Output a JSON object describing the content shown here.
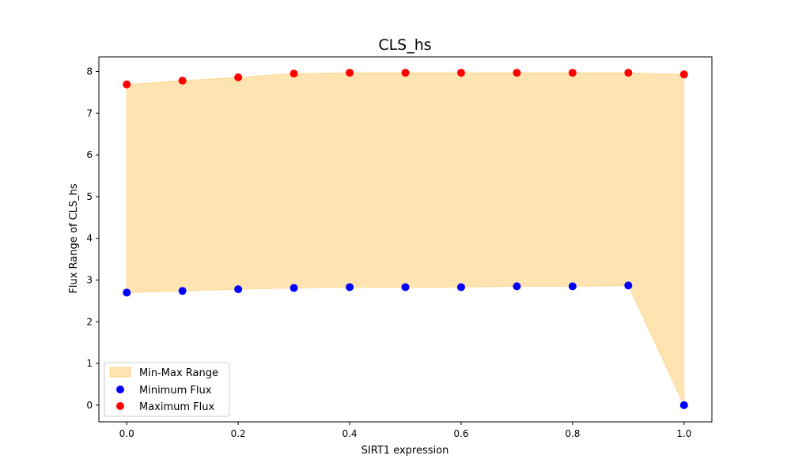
{
  "chart_data": {
    "type": "scatter",
    "title": "CLS_hs",
    "xlabel": "SIRT1 expression",
    "ylabel": "Flux Range of CLS_hs",
    "x": [
      0.0,
      0.1,
      0.2,
      0.3,
      0.4,
      0.5,
      0.6,
      0.7,
      0.8,
      0.9,
      1.0
    ],
    "xlim": [
      -0.05,
      1.05
    ],
    "ylim": [
      -0.4,
      8.35
    ],
    "xticks": [
      0.0,
      0.2,
      0.4,
      0.6,
      0.8,
      1.0
    ],
    "xtick_labels": [
      "0.0",
      "0.2",
      "0.4",
      "0.6",
      "0.8",
      "1.0"
    ],
    "yticks": [
      0,
      1,
      2,
      3,
      4,
      5,
      6,
      7,
      8
    ],
    "ytick_labels": [
      "0",
      "1",
      "2",
      "3",
      "4",
      "5",
      "6",
      "7",
      "8"
    ],
    "grid": false,
    "legend_position": "lower-left",
    "fill_between": {
      "name": "Min-Max Range",
      "color": "#ffa500",
      "opacity": 0.3
    },
    "series": [
      {
        "name": "Minimum Flux",
        "color": "#0000ff",
        "values": [
          2.7,
          2.74,
          2.78,
          2.81,
          2.83,
          2.83,
          2.83,
          2.85,
          2.85,
          2.87,
          0.0
        ]
      },
      {
        "name": "Maximum Flux",
        "color": "#ff0000",
        "values": [
          7.69,
          7.78,
          7.86,
          7.95,
          7.97,
          7.97,
          7.97,
          7.97,
          7.97,
          7.97,
          7.93
        ]
      }
    ]
  }
}
